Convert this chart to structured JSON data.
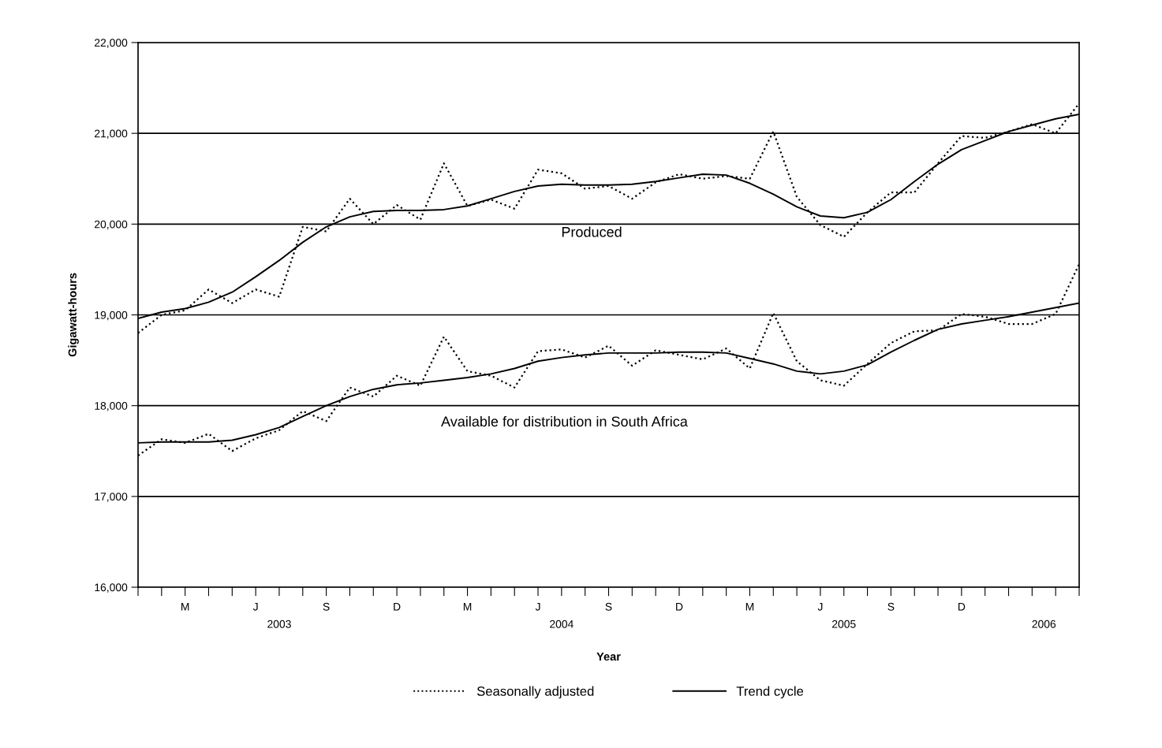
{
  "chart_data": {
    "type": "line",
    "xlabel": "Year",
    "ylabel": "Gigawatt-hours",
    "categories": [
      null,
      null,
      "M",
      null,
      null,
      "J",
      null,
      null,
      "S",
      null,
      null,
      "D",
      null,
      null,
      "M",
      null,
      null,
      "J",
      null,
      null,
      "S",
      null,
      null,
      "D",
      null,
      null,
      "M",
      null,
      null,
      "J",
      null,
      null,
      "S",
      null,
      null,
      "D",
      null,
      null,
      null,
      null,
      null
    ],
    "series": [
      {
        "name": "Seasonally adjusted",
        "color": "#000000",
        "line_style": "dotted",
        "values": [
          18800,
          19000,
          19050,
          19280,
          19130,
          19280,
          19200,
          19970,
          19920,
          20280,
          20000,
          20210,
          20050,
          20670,
          20200,
          20270,
          20170,
          20600,
          20560,
          20390,
          20420,
          20280,
          20460,
          20550,
          20500,
          20530,
          20500,
          21020,
          20300,
          19990,
          19860,
          20130,
          20350,
          20350,
          20670,
          20970,
          20950,
          21020,
          21100,
          21000,
          21330
        ]
      },
      {
        "name": "Trend cycle",
        "color": "#000000",
        "line_style": "solid",
        "values": [
          18960,
          19030,
          19070,
          19140,
          19250,
          19420,
          19600,
          19800,
          19970,
          20080,
          20140,
          20150,
          20150,
          20160,
          20200,
          20280,
          20360,
          20420,
          20440,
          20430,
          20430,
          20440,
          20470,
          20510,
          20550,
          20540,
          20450,
          20330,
          20190,
          20090,
          20070,
          20130,
          20270,
          20470,
          20660,
          20820,
          20920,
          21020,
          21090,
          21160,
          21210
        ]
      },
      {
        "color": "#000000",
        "line_style": "dotted",
        "values": [
          17450,
          17630,
          17590,
          17690,
          17500,
          17640,
          17730,
          17940,
          17830,
          18200,
          18100,
          18330,
          18220,
          18760,
          18380,
          18330,
          18200,
          18600,
          18620,
          18530,
          18660,
          18440,
          18610,
          18560,
          18510,
          18630,
          18410,
          19020,
          18490,
          18280,
          18220,
          18460,
          18690,
          18820,
          18830,
          19010,
          18980,
          18900,
          18900,
          19010,
          19560
        ]
      },
      {
        "color": "#000000",
        "line_style": "solid",
        "values": [
          17590,
          17600,
          17600,
          17600,
          17620,
          17680,
          17760,
          17880,
          18000,
          18100,
          18180,
          18230,
          18250,
          18280,
          18310,
          18350,
          18410,
          18490,
          18530,
          18560,
          18580,
          18580,
          18580,
          18590,
          18590,
          18580,
          18520,
          18460,
          18380,
          18350,
          18380,
          18450,
          18590,
          18720,
          18840,
          18900,
          18940,
          18980,
          19030,
          19080,
          19130
        ]
      }
    ],
    "annotations": [
      "Produced",
      "Available for distribution in South Africa",
      "2003",
      "2004",
      "2005",
      "2006"
    ],
    "ylim": [
      16000,
      22000
    ],
    "yticks": [
      {
        "value": 16000,
        "label": "16,000"
      },
      {
        "value": 17000,
        "label": "17,000"
      },
      {
        "value": 18000,
        "label": "18,000"
      },
      {
        "value": 19000,
        "label": "19,000"
      },
      {
        "value": 20000,
        "label": "20,000"
      },
      {
        "value": 21000,
        "label": "21,000"
      },
      {
        "value": 22000,
        "label": "22,000"
      }
    ],
    "grid": "y",
    "legend": "bottom"
  }
}
